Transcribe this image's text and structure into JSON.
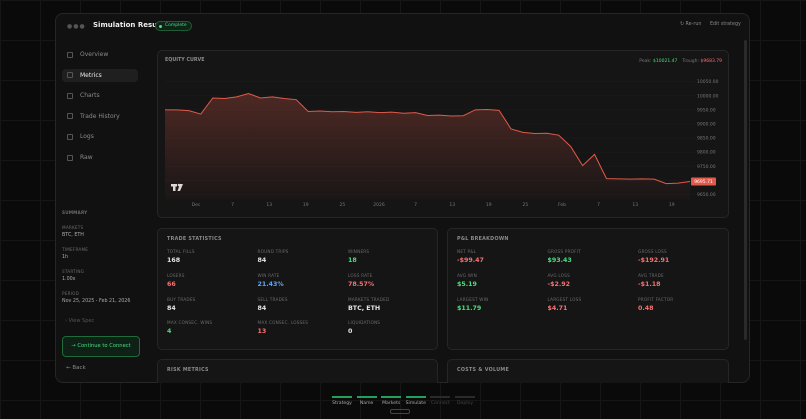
{
  "window": {
    "title": "Simulation Results",
    "status": "Complete",
    "actions": [
      "Re-run",
      "Edit strategy"
    ]
  },
  "sidebar": {
    "nav": [
      "Overview",
      "Metrics",
      "Charts",
      "Trade History",
      "Logs",
      "Raw"
    ],
    "summary": {
      "title": "SUMMARY",
      "fields": [
        {
          "label": "MARKETS",
          "value": "BTC, ETH"
        },
        {
          "label": "TIMEFRAME",
          "value": "1h"
        },
        {
          "label": "STARTING",
          "value": "1.00x"
        },
        {
          "label": "PERIOD",
          "value": "Nov 25, 2025 - Feb 21, 2026"
        }
      ]
    },
    "view_spec": "View Spec",
    "button": "Continue to Connect",
    "back": "Back"
  },
  "chart_data": {
    "type": "line",
    "title": "EQUITY CURVE",
    "stats": [
      {
        "label": "Peak:",
        "value": "$10021.47",
        "color": "#4ade80"
      },
      {
        "label": "Trough:",
        "value": "$9683.79",
        "color": "#f87171"
      }
    ],
    "values": [
      9950,
      9950,
      9947,
      9935,
      9992,
      9990,
      9996,
      10008,
      9992,
      9996,
      9990,
      9986,
      9944,
      9946,
      9943,
      9944,
      9941,
      9943,
      9940,
      9942,
      9938,
      9940,
      9930,
      9931,
      9928,
      9929,
      9950,
      9951,
      9948,
      9882,
      9870,
      9866,
      9867,
      9860,
      9820,
      9752,
      9792,
      9706,
      9705,
      9704,
      9705,
      9704,
      9688,
      9690,
      9695.71
    ],
    "color": "#e05a4a",
    "ylim": [
      9630,
      10070
    ],
    "yticks": [
      {
        "value": 10050,
        "label": "10050.00"
      },
      {
        "value": 10000,
        "label": "10000.00"
      },
      {
        "value": 9950,
        "label": "9950.00"
      },
      {
        "value": 9900,
        "label": "9900.00"
      },
      {
        "value": 9850,
        "label": "9850.00"
      },
      {
        "value": 9800,
        "label": "9800.00"
      },
      {
        "value": 9750,
        "label": "9750.00"
      },
      {
        "value": 9700,
        "label": "9700.00"
      },
      {
        "value": 9650,
        "label": "9650.00"
      }
    ],
    "xticks": [
      "Dec",
      "7",
      "13",
      "19",
      "25",
      "2026",
      "7",
      "13",
      "19",
      "25",
      "Feb",
      "7",
      "13",
      "19"
    ],
    "grid": true
  },
  "panels": [
    {
      "title": "TRADE STATISTICS",
      "items": [
        {
          "label": "TOTAL FILLS",
          "value": "168",
          "color": "#e5e5e5"
        },
        {
          "label": "ROUND TRIPS",
          "value": "84",
          "color": "#e5e5e5"
        },
        {
          "label": "WINNERS",
          "value": "18",
          "color": "#4ade80"
        },
        {
          "label": "LOSERS",
          "value": "66",
          "color": "#f87171"
        },
        {
          "label": "WIN RATE",
          "value": "21.43%",
          "color": "#60a5fa"
        },
        {
          "label": "LOSS RATE",
          "value": "78.57%",
          "color": "#f87171"
        },
        {
          "label": "BUY TRADES",
          "value": "84",
          "color": "#e5e5e5"
        },
        {
          "label": "SELL TRADES",
          "value": "84",
          "color": "#e5e5e5"
        },
        {
          "label": "MARKETS TRADED",
          "value": "BTC, ETH",
          "color": "#e5e5e5"
        },
        {
          "label": "MAX CONSEC. WINS",
          "value": "4",
          "color": "#4ade80"
        },
        {
          "label": "MAX CONSEC. LOSSES",
          "value": "13",
          "color": "#f87171"
        },
        {
          "label": "LIQUIDATIONS",
          "value": "0",
          "color": "#e5e5e5"
        }
      ]
    },
    {
      "title": "P&L BREAKDOWN",
      "items": [
        {
          "label": "NET P&L",
          "value": "-$99.47",
          "color": "#f87171"
        },
        {
          "label": "GROSS PROFIT",
          "value": "$93.43",
          "color": "#4ade80"
        },
        {
          "label": "GROSS LOSS",
          "value": "-$192.91",
          "color": "#f87171"
        },
        {
          "label": "AVG WIN",
          "value": "$5.19",
          "color": "#4ade80"
        },
        {
          "label": "AVG LOSS",
          "value": "-$2.92",
          "color": "#f87171"
        },
        {
          "label": "AVG TRADE",
          "value": "-$1.18",
          "color": "#f87171"
        },
        {
          "label": "LARGEST WIN",
          "value": "$11.79",
          "color": "#4ade80"
        },
        {
          "label": "LARGEST LOSS",
          "value": "$4.71",
          "color": "#f87171"
        },
        {
          "label": "PROFIT FACTOR",
          "value": "0.48",
          "color": "#f87171"
        }
      ]
    },
    {
      "title": "RISK METRICS",
      "items": []
    },
    {
      "title": "COSTS & VOLUME",
      "items": []
    }
  ],
  "steps": [
    {
      "label": "Strategy",
      "done": true
    },
    {
      "label": "Name",
      "done": true
    },
    {
      "label": "Markets",
      "done": true
    },
    {
      "label": "Simulate",
      "done": true
    },
    {
      "label": "Connect",
      "done": false
    },
    {
      "label": "Deploy",
      "done": false
    }
  ]
}
